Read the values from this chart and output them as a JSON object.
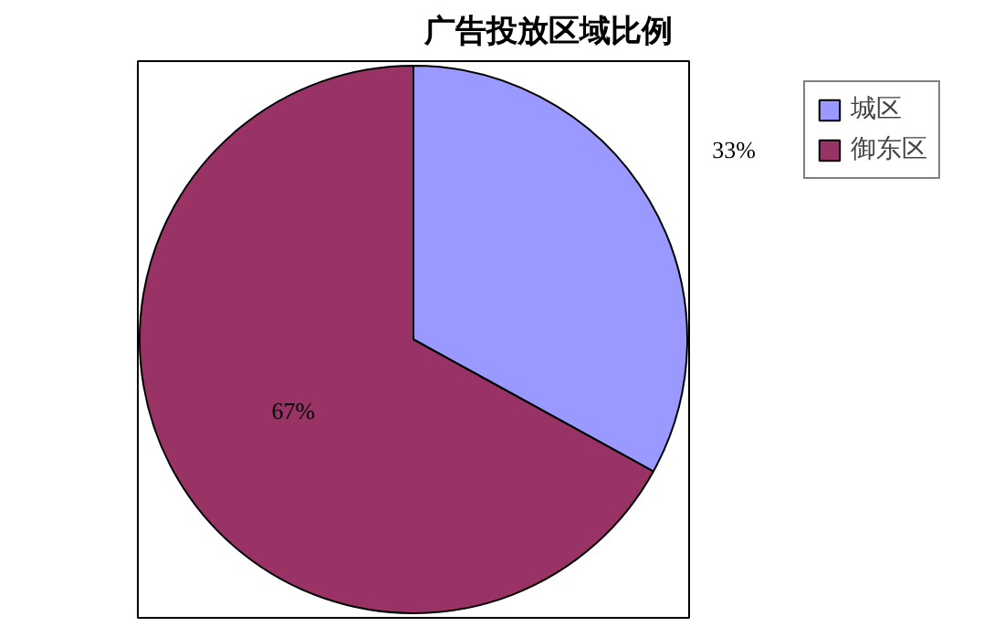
{
  "chart_data": {
    "type": "pie",
    "title": "广告投放区域比例",
    "categories": [
      "城区",
      "御东区"
    ],
    "values": [
      33,
      67
    ],
    "colors": [
      "#9999ff",
      "#993366"
    ],
    "value_labels": [
      "33%",
      "67%"
    ],
    "legend": "top right"
  }
}
